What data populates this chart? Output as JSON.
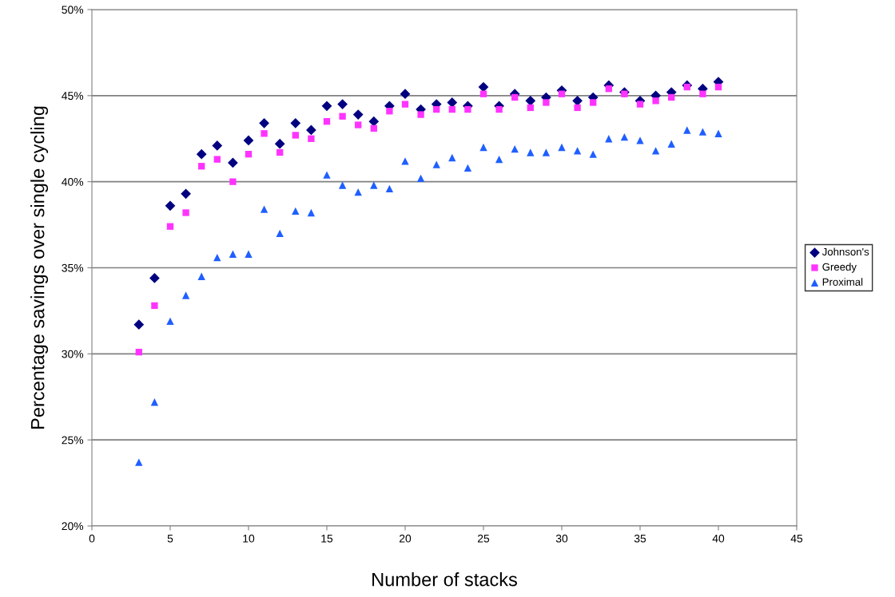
{
  "chart_data": {
    "type": "scatter",
    "xlabel": "Number of stacks",
    "ylabel": "Percentage savings over single cycling",
    "x": [
      3,
      4,
      5,
      6,
      7,
      8,
      9,
      10,
      11,
      12,
      13,
      14,
      15,
      16,
      17,
      18,
      19,
      20,
      21,
      22,
      23,
      24,
      25,
      26,
      27,
      28,
      29,
      30,
      31,
      32,
      33,
      34,
      35,
      36,
      37,
      38,
      39,
      40
    ],
    "series": [
      {
        "name": "Johnson's",
        "color": "#000080",
        "marker": "diamond",
        "values": [
          31.7,
          34.4,
          38.6,
          39.3,
          41.6,
          42.1,
          41.1,
          42.4,
          43.4,
          42.2,
          43.4,
          43.0,
          44.4,
          44.5,
          43.9,
          43.5,
          44.4,
          45.1,
          44.2,
          44.5,
          44.6,
          44.4,
          45.5,
          44.4,
          45.1,
          44.7,
          44.9,
          45.3,
          44.7,
          44.9,
          45.6,
          45.2,
          44.7,
          45.0,
          45.2,
          45.6,
          45.4,
          45.8
        ]
      },
      {
        "name": "Greedy",
        "color": "#ff33ff",
        "marker": "square",
        "values": [
          30.1,
          32.8,
          37.4,
          38.2,
          40.9,
          41.3,
          40.0,
          41.6,
          42.8,
          41.7,
          42.7,
          42.5,
          43.5,
          43.8,
          43.3,
          43.1,
          44.1,
          44.5,
          43.9,
          44.2,
          44.2,
          44.2,
          45.1,
          44.2,
          44.9,
          44.3,
          44.6,
          45.1,
          44.3,
          44.6,
          45.4,
          45.1,
          44.5,
          44.7,
          44.9,
          45.5,
          45.1,
          45.5
        ]
      },
      {
        "name": "Proximal",
        "color": "#1f5fff",
        "marker": "triangle",
        "values": [
          23.7,
          27.2,
          31.9,
          33.4,
          34.5,
          35.6,
          35.8,
          35.8,
          38.4,
          37.0,
          38.3,
          38.2,
          40.4,
          39.8,
          39.4,
          39.8,
          39.6,
          41.2,
          40.2,
          41.0,
          41.4,
          40.8,
          42.0,
          41.3,
          41.9,
          41.7,
          41.7,
          42.0,
          41.8,
          41.6,
          42.5,
          42.6,
          42.4,
          41.8,
          42.2,
          43.0,
          42.9,
          42.8
        ]
      }
    ],
    "xlim": [
      0,
      45
    ],
    "xticks": [
      0,
      5,
      10,
      15,
      20,
      25,
      30,
      35,
      40,
      45
    ],
    "ylim": [
      20,
      50
    ],
    "yticks": [
      {
        "value": 20,
        "label": "20%"
      },
      {
        "value": 25,
        "label": "25%"
      },
      {
        "value": 30,
        "label": "30%"
      },
      {
        "value": 35,
        "label": "35%"
      },
      {
        "value": 40,
        "label": "40%"
      },
      {
        "value": 45,
        "label": "45%"
      },
      {
        "value": 50,
        "label": "50%"
      }
    ],
    "grid": "y",
    "legend": "right"
  }
}
